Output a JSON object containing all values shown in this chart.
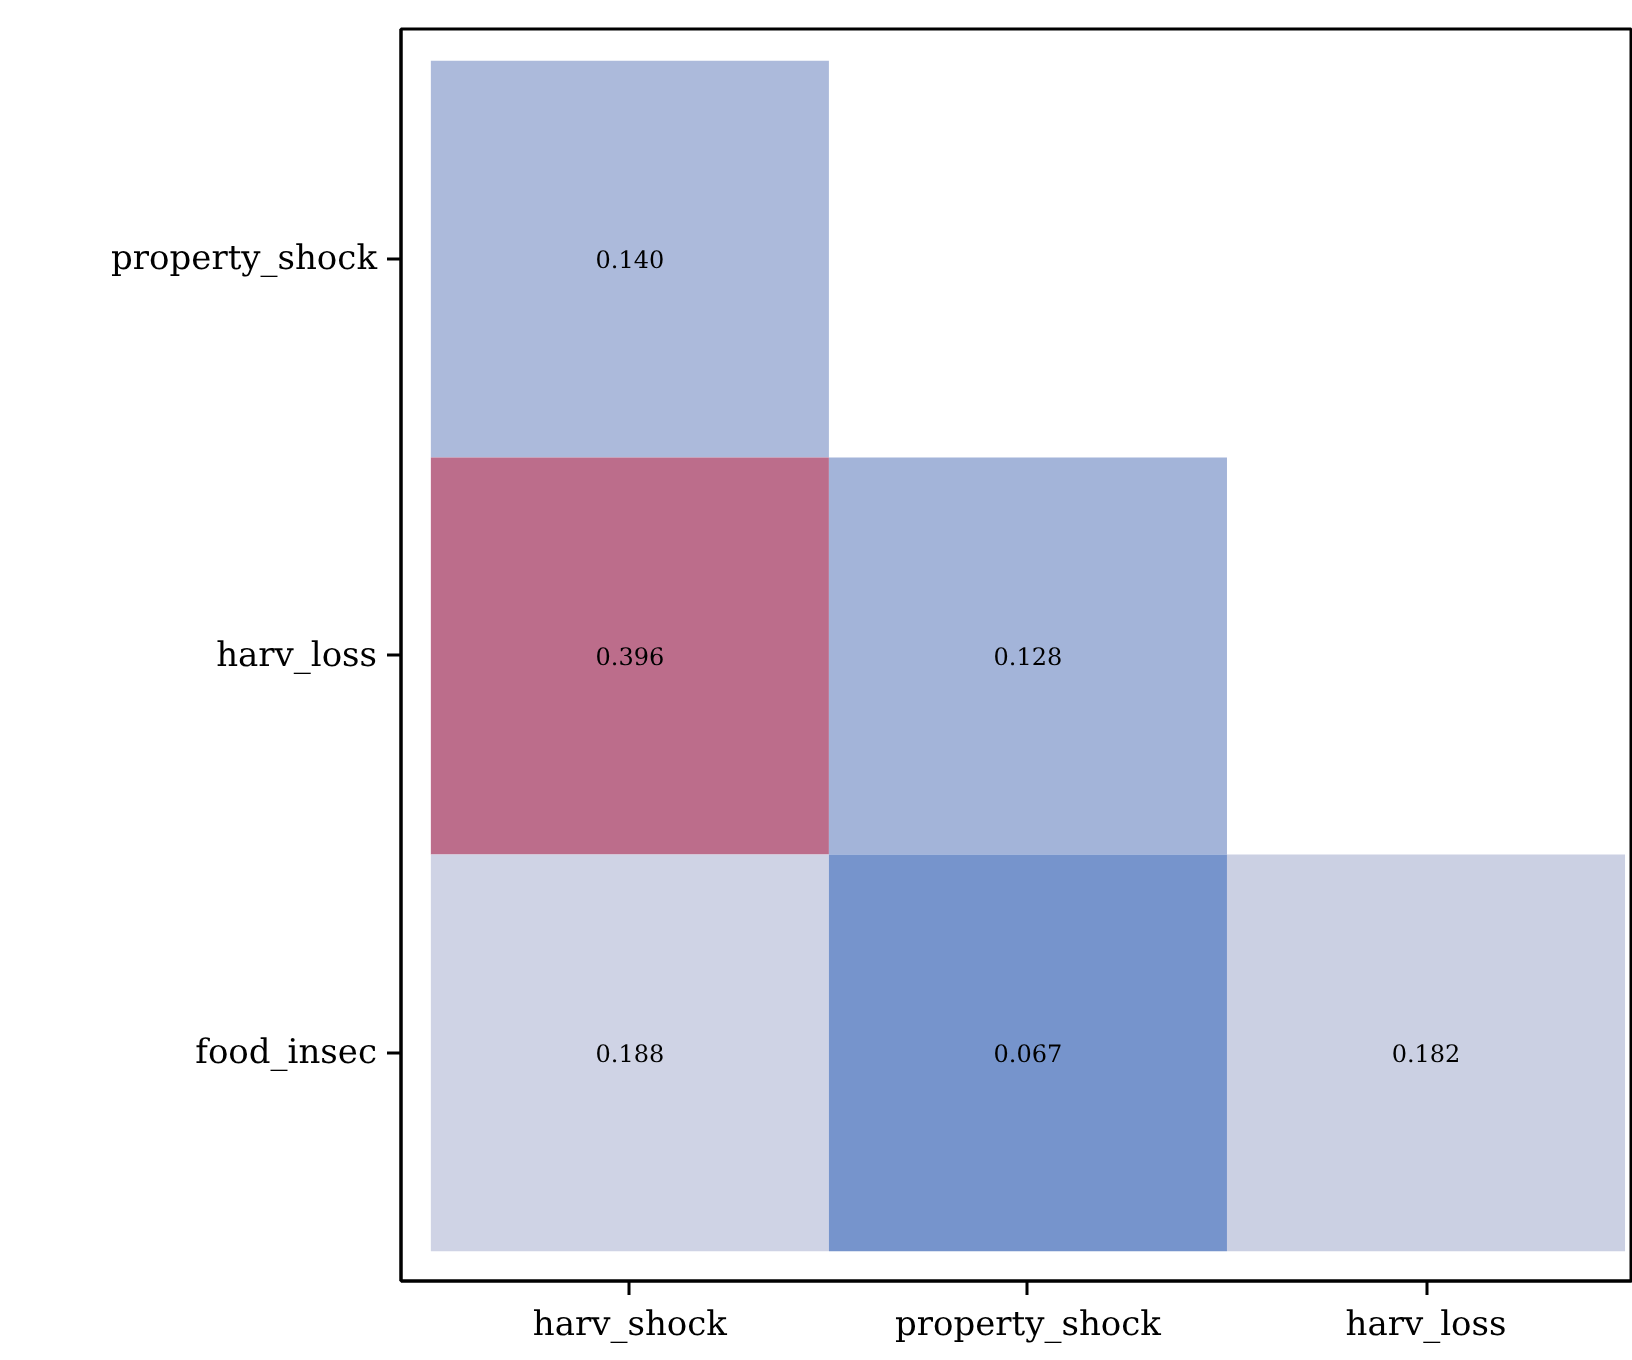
{
  "chart_data": {
    "type": "heatmap",
    "categories": [
      "harv_shock",
      "property_shock",
      "harv_loss"
    ],
    "y_categories": [
      "property_shock",
      "harv_loss",
      "food_insec"
    ],
    "cells": [
      [
        0.14,
        null,
        null
      ],
      [
        0.396,
        0.128,
        null
      ],
      [
        0.188,
        0.067,
        0.182
      ]
    ],
    "cell_labels": [
      [
        "0.140",
        null,
        null
      ],
      [
        "0.396",
        "0.128",
        null
      ],
      [
        "0.188",
        "0.067",
        "0.182"
      ]
    ]
  }
}
